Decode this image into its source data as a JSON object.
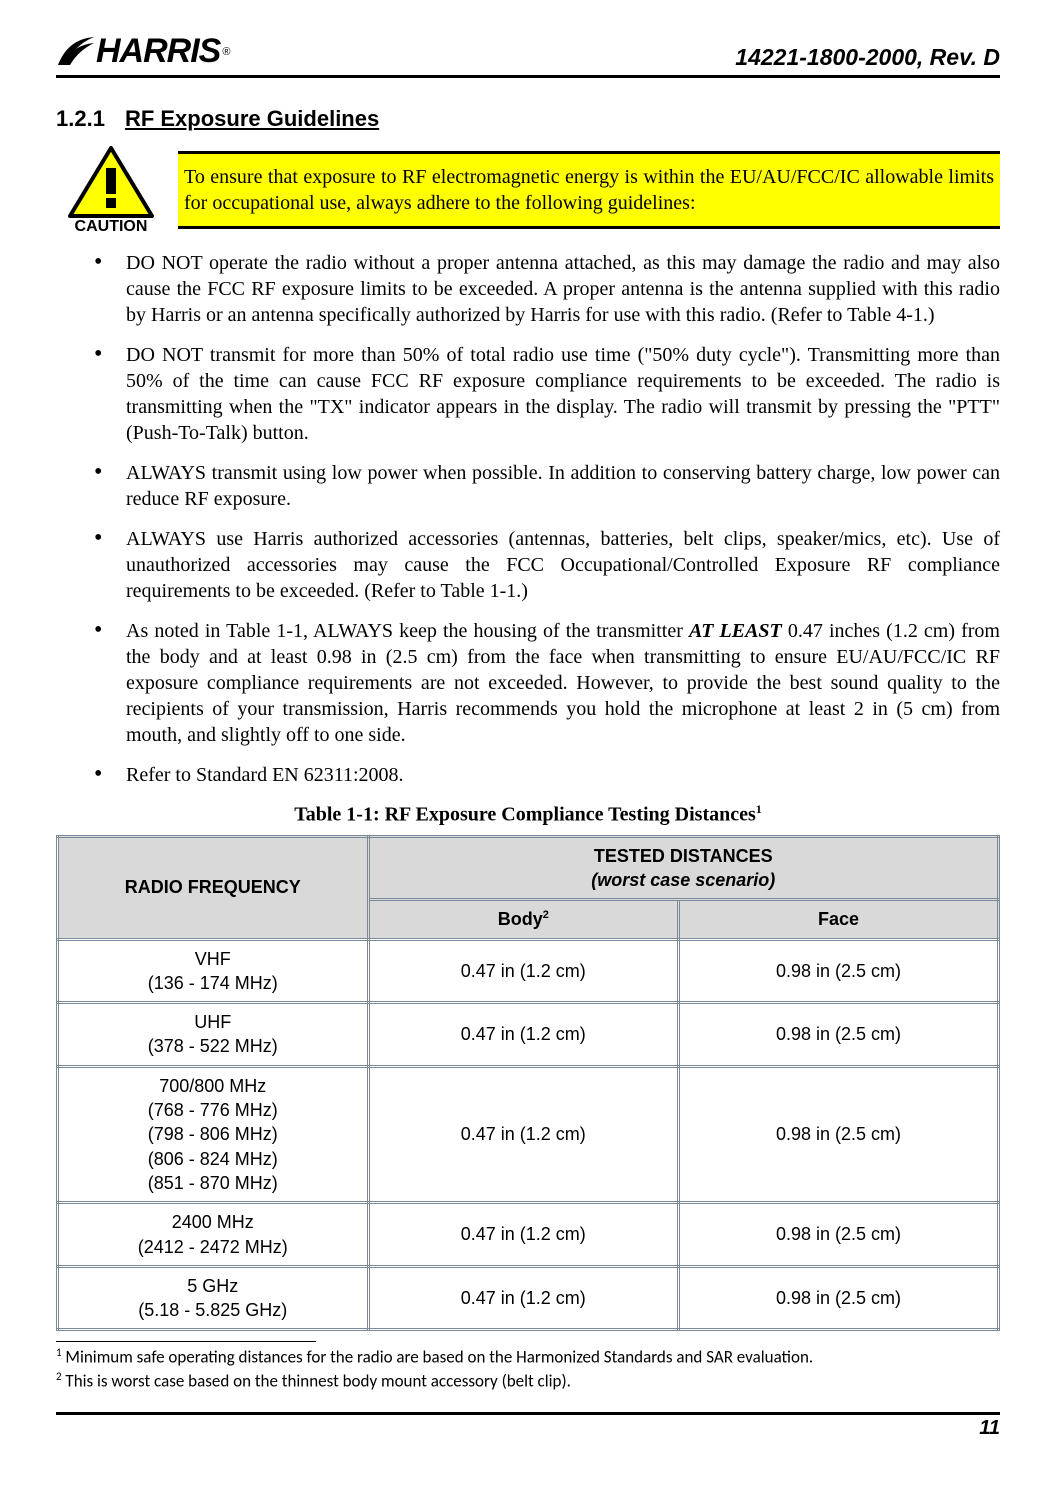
{
  "header": {
    "logo_name": "HARRIS",
    "logo_rmark": "®",
    "doc_number": "14221-1800-2000, Rev. D"
  },
  "section": {
    "number": "1.2.1",
    "title": "RF Exposure Guidelines"
  },
  "caution": {
    "icon_label": "CAUTION",
    "text": "To ensure that exposure to RF electromagnetic energy is within the EU/AU/FCC/IC allowable limits for occupational use, always adhere to the following guidelines:"
  },
  "bullets": {
    "b0": "DO NOT operate the radio without a proper antenna attached, as this may damage the radio and may also cause the FCC RF exposure limits to be exceeded. A proper antenna is the antenna supplied with this radio by Harris or an antenna specifically authorized by Harris for use with this radio. (Refer to Table 4-1.)",
    "b1": "DO NOT transmit for more than 50% of total radio use time (\"50% duty cycle\"). Transmitting more than 50% of the time can cause FCC RF exposure compliance requirements to be exceeded. The radio is transmitting when the \"TX\" indicator appears in the display. The radio will transmit by pressing the \"PTT\" (Push-To-Talk) button.",
    "b2": "ALWAYS transmit using low power when possible. In addition to conserving battery charge, low power can reduce RF exposure.",
    "b3": "ALWAYS use Harris authorized accessories (antennas, batteries, belt clips, speaker/mics, etc). Use of unauthorized accessories may cause the FCC Occupational/Controlled Exposure RF compliance requirements to be exceeded. (Refer to Table 1-1.)",
    "b4_pre": "As noted in Table 1-1, ALWAYS keep the housing of the transmitter ",
    "b4_bold": "AT LEAST",
    "b4_post": " 0.47 inches (1.2 cm) from the body and at least 0.98 in (2.5 cm) from the face when transmitting to ensure EU/AU/FCC/IC RF exposure compliance requirements are not exceeded. However, to provide the best sound quality to the recipients of your transmission, Harris recommends you hold the microphone at least 2 in (5 cm) from mouth, and slightly off to one side.",
    "b5": "Refer to Standard EN 62311:2008."
  },
  "table": {
    "title": "Table 1-1: RF Exposure Compliance Testing Distances",
    "title_sup": "1",
    "head_freq": "RADIO FREQUENCY",
    "head_tested": "TESTED DISTANCES",
    "head_tested_sub": "(worst case scenario)",
    "head_body": "Body",
    "head_body_sup": "2",
    "head_face": "Face",
    "rows": {
      "r0": {
        "freq_lines": [
          "VHF",
          "(136 - 174 MHz)"
        ],
        "body": "0.47 in (1.2 cm)",
        "face": "0.98 in (2.5 cm)"
      },
      "r1": {
        "freq_lines": [
          "UHF",
          "(378 - 522 MHz)"
        ],
        "body": "0.47 in (1.2 cm)",
        "face": "0.98 in (2.5 cm)"
      },
      "r2": {
        "freq_lines": [
          "700/800 MHz",
          "(768 - 776 MHz)",
          "(798 - 806 MHz)",
          "(806 - 824 MHz)",
          "(851 - 870 MHz)"
        ],
        "body": "0.47 in (1.2 cm)",
        "face": "0.98 in (2.5 cm)"
      },
      "r3": {
        "freq_lines": [
          "2400 MHz",
          "(2412 - 2472 MHz)"
        ],
        "body": "0.47 in (1.2 cm)",
        "face": "0.98 in (2.5 cm)"
      },
      "r4": {
        "freq_lines": [
          "5 GHz",
          "(5.18 - 5.825 GHz)"
        ],
        "body": "0.47 in (1.2 cm)",
        "face": "0.98 in (2.5 cm)"
      }
    }
  },
  "footnotes": {
    "f1_sup": "1",
    "f1_text": " Minimum safe operating distances for the radio are based on the Harmonized Standards and SAR evaluation.",
    "f2_sup": "2",
    "f2_text": " This is worst case based on the thinnest body mount accessory (belt clip)."
  },
  "footer": {
    "page_number": "11"
  },
  "style": {
    "colors": {
      "background": "#ffffff",
      "text": "#000000",
      "highlight": "#ffff00",
      "table_header_bg": "#d9d9d9",
      "table_border": "#7a8a99",
      "triangle_border": "#000000",
      "triangle_fill": "#ffff00"
    },
    "fonts": {
      "body_family": "Times New Roman",
      "sans_family": "Arial",
      "footnote_family": "Calibri",
      "body_size_pt": 15,
      "section_size_pt": 16,
      "docno_size_pt": 17
    },
    "table_column_widths_pct": [
      33,
      33,
      34
    ]
  }
}
